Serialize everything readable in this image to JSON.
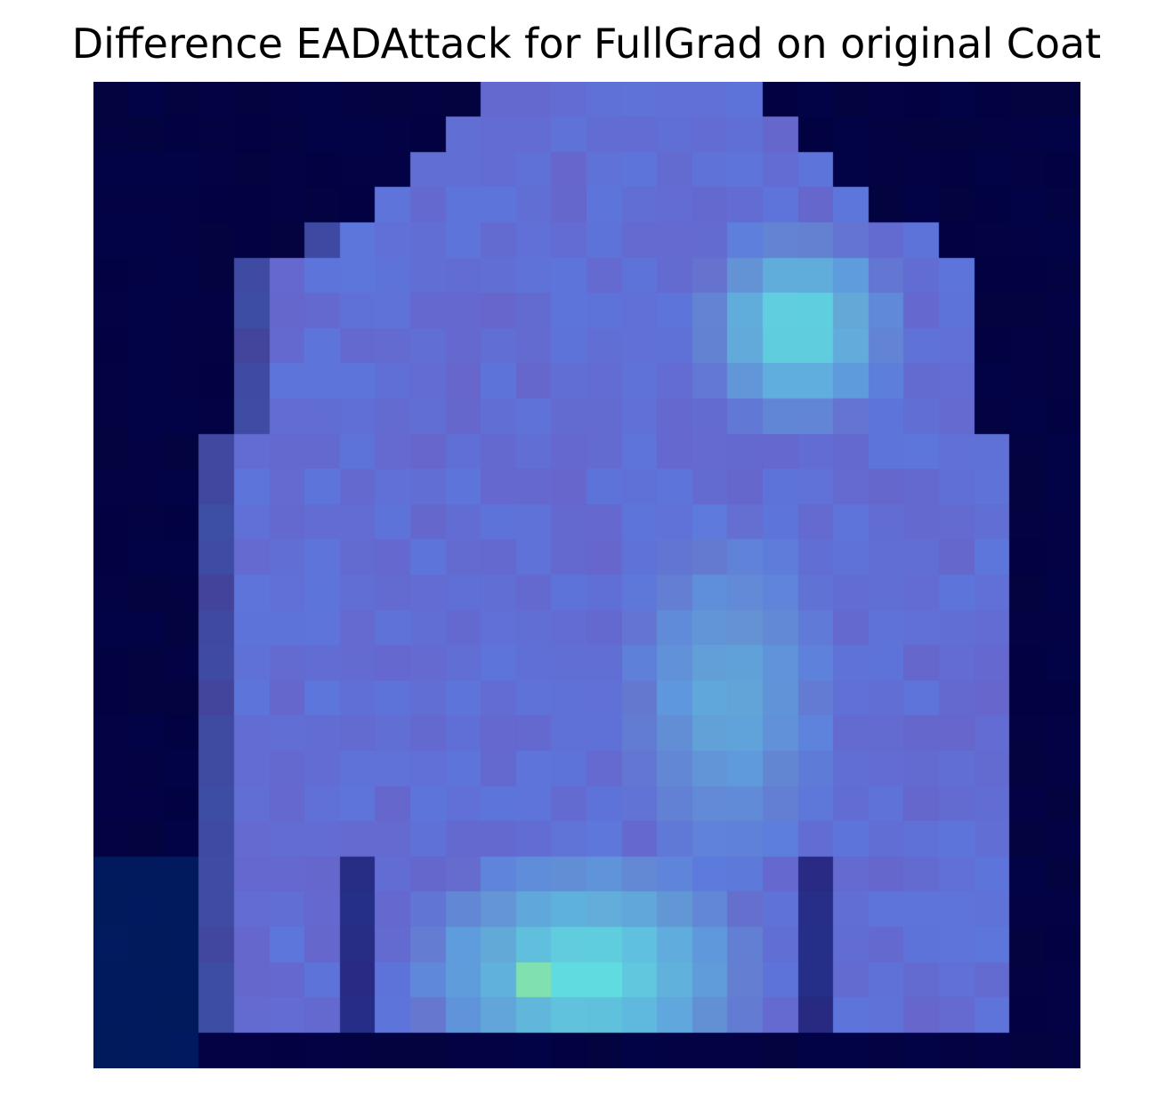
{
  "figure": {
    "title": "Difference EADAttack for FullGrad on original Coat"
  },
  "image": {
    "rows": 28,
    "cols": 28,
    "colors": {
      "background": "#03033f",
      "dark_navy": "#000050",
      "coat_purple": "#6666cc",
      "coat_blue": "#5a7ae0",
      "highlight_cyan": "#60dde0",
      "highlight_mint": "#80e0b0"
    }
  }
}
